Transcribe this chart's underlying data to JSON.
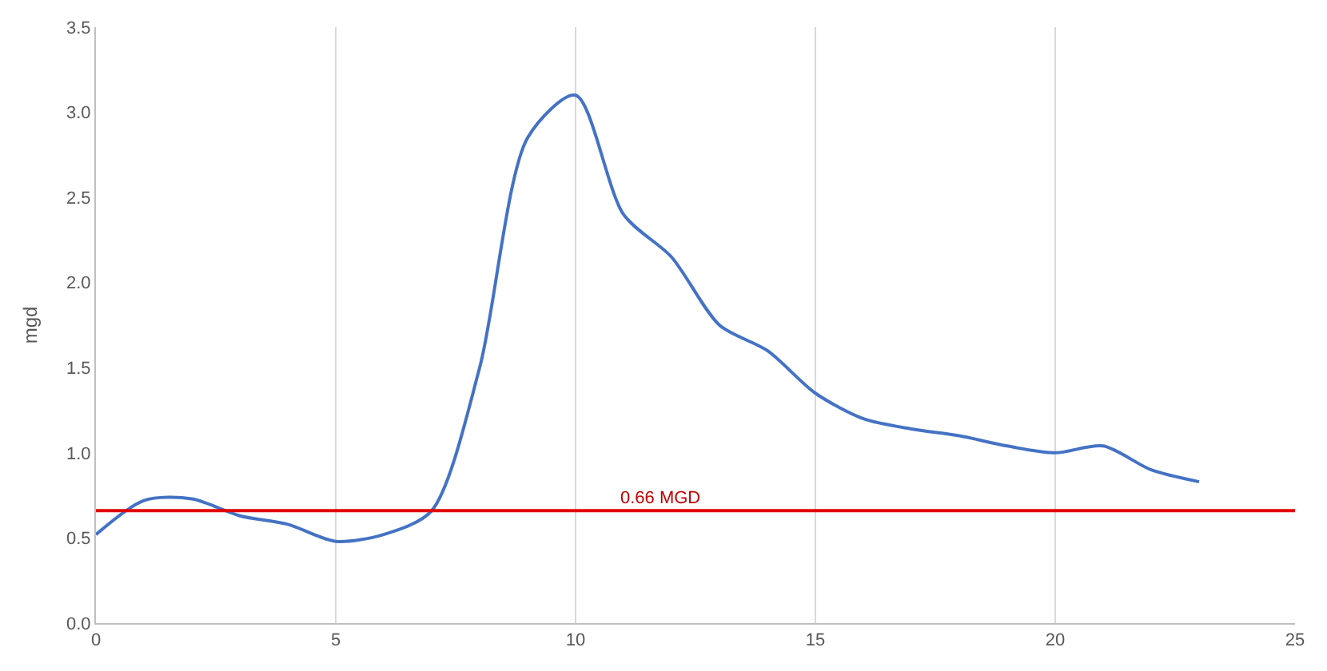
{
  "chart_data": {
    "type": "line",
    "ylabel": "mgd",
    "x": [
      0,
      1,
      2,
      3,
      4,
      5,
      6,
      7,
      8,
      9,
      10,
      11,
      12,
      13,
      14,
      15,
      16,
      17,
      18,
      19,
      20,
      21,
      22,
      23
    ],
    "series": [
      {
        "color": "#4472c4",
        "values": [
          0.52,
          0.72,
          0.73,
          0.63,
          0.58,
          0.48,
          0.52,
          0.66,
          1.5,
          2.85,
          3.1,
          2.4,
          2.15,
          1.75,
          1.6,
          1.35,
          1.2,
          1.14,
          1.1,
          1.04,
          1.0,
          1.04,
          0.9,
          0.83
        ]
      }
    ],
    "xlim": [
      0,
      25
    ],
    "xticks": [
      0,
      5,
      10,
      15,
      20,
      25
    ],
    "ylim": [
      0,
      3.5
    ],
    "yticks": [
      {
        "value": 0,
        "label": "0.0"
      },
      {
        "value": 0.5,
        "label": "0.5"
      },
      {
        "value": 1,
        "label": "1.0"
      },
      {
        "value": 1.5,
        "label": "1.5"
      },
      {
        "value": 2,
        "label": "2.0"
      },
      {
        "value": 2.5,
        "label": "2.5"
      },
      {
        "value": 3,
        "label": "3.0"
      },
      {
        "value": 3.5,
        "label": "3.5"
      }
    ],
    "ref_lines": [
      {
        "axis": "y",
        "value": 0.66,
        "label": "0.66 MGD",
        "color": "#e00000"
      }
    ],
    "grid": "x",
    "marker": "none",
    "line_style": "solid"
  }
}
